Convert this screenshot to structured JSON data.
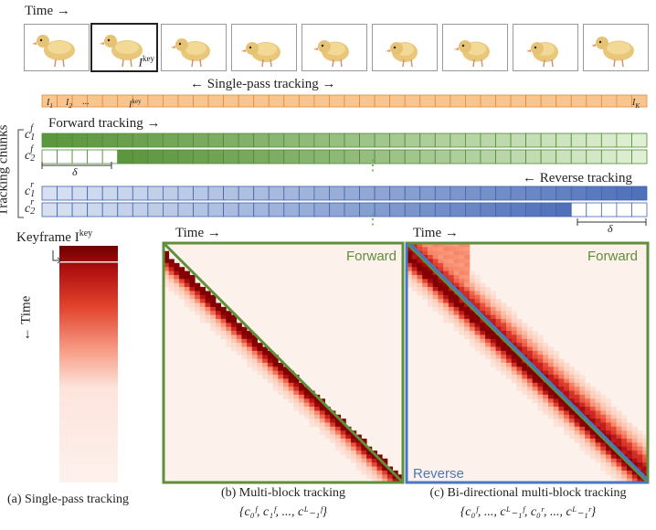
{
  "time_label": "Time →",
  "key_label": "I",
  "key_sup": "key",
  "single_pass_label": "← Single-pass tracking →",
  "frames_strip": {
    "i1": "I",
    "i1_sub": "1",
    "i2": "I",
    "i2_sub": "2",
    "ellipsis": "...",
    "ikey": "I",
    "ikey_sup": "key",
    "ik": "I",
    "ik_sub": "K"
  },
  "tracking_chunks_label": "Tracking chunks",
  "forward_tracking_label": "Forward tracking →",
  "reverse_tracking_label": "← Reverse tracking",
  "delta": "δ",
  "chunks": [
    {
      "c": "c",
      "sup": "f",
      "sub": "1"
    },
    {
      "c": "c",
      "sup": "f",
      "sub": "2"
    },
    {
      "c": "c",
      "sup": "r",
      "sub": "1"
    },
    {
      "c": "c",
      "sup": "r",
      "sub": "2"
    }
  ],
  "vdots": "⋮",
  "keyframe_label": "Keyframe I",
  "keyframe_sup": "key",
  "time_vertical": "← Time",
  "time_b": "Time →",
  "time_c": "Time →",
  "forward_b": "Forward",
  "forward_c": "Forward",
  "reverse_c": "Reverse",
  "caption_a": "(a) Single-pass tracking",
  "caption_b": "(b) Multi-block tracking",
  "caption_b_set": "{c₀ᶠ, c₁ᶠ, ..., cᴸ₋₁ᶠ}",
  "caption_c": "(c) Bi-directional multi-block tracking",
  "caption_c_set": "{c₀ᶠ, ..., cᴸ₋₁ᶠ, c₀ʳ, ..., cᴸ₋₁ʳ}",
  "colors": {
    "orange": "#f5b67a",
    "orange_border": "#e07a1e",
    "green": "#6aa84f",
    "blue": "#5b7dbf",
    "frame_green": "#5f8f3a",
    "frame_blue": "#4a78c0",
    "red_dark": "#8b0000"
  }
}
